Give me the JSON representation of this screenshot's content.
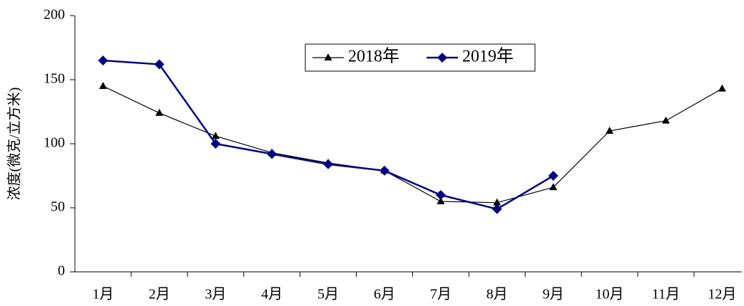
{
  "chart_data": {
    "type": "line",
    "y_label": "浓度(微克/立方米)",
    "categories": [
      "1月",
      "2月",
      "3月",
      "4月",
      "5月",
      "6月",
      "7月",
      "8月",
      "9月",
      "10月",
      "11月",
      "12月"
    ],
    "series": [
      {
        "name": "2018年",
        "color": "#000000",
        "marker": "triangle",
        "values": [
          145,
          124,
          106,
          93,
          85,
          79,
          55,
          54,
          66,
          110,
          118,
          143
        ]
      },
      {
        "name": "2019年",
        "color": "#000080",
        "marker": "diamond",
        "values": [
          165,
          162,
          100,
          92,
          84,
          79,
          60,
          49,
          75,
          null,
          null,
          null
        ]
      }
    ],
    "ylim": [
      0,
      200
    ],
    "yticks": [
      0,
      50,
      100,
      150,
      200
    ],
    "grid": false,
    "legend": "top"
  }
}
